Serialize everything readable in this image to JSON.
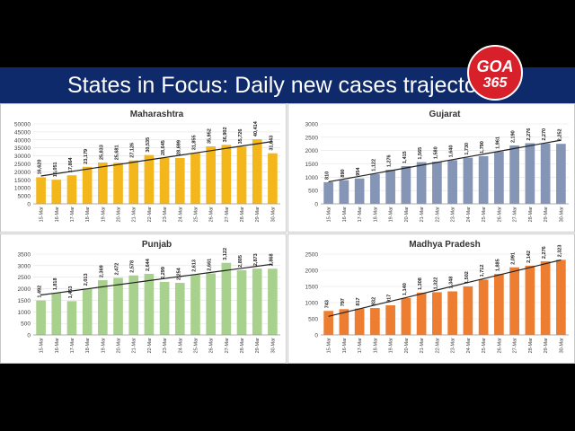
{
  "banner": {
    "title": "States in Focus: Daily new cases trajectory"
  },
  "logo": {
    "top": "GOA",
    "bottom": "365"
  },
  "chart_data": [
    {
      "type": "bar",
      "title": "Maharashtra",
      "color": "#f4b71b",
      "categories": [
        "15-Mar",
        "16-Mar",
        "17-Mar",
        "18-Mar",
        "19-Mar",
        "20-Mar",
        "21-Mar",
        "22-Mar",
        "23-Mar",
        "24-Mar",
        "25-Mar",
        "26-Mar",
        "27-Mar",
        "28-Mar",
        "29-Mar",
        "30-Mar"
      ],
      "values": [
        16620,
        15051,
        17864,
        23179,
        25833,
        25681,
        27126,
        30535,
        28645,
        28699,
        31855,
        35952,
        36902,
        35726,
        40414,
        31643
      ],
      "labels": [
        "16,620",
        "15,051",
        "17,864",
        "23,179",
        "25,833",
        "25,681",
        "27,126",
        "30,535",
        "28,645",
        "28,699",
        "31,855",
        "35,952",
        "36,902",
        "35,726",
        "40,414",
        "31,643"
      ],
      "yticks": [
        "0",
        "5000",
        "10000",
        "15000",
        "20000",
        "25000",
        "30000",
        "35000",
        "40000",
        "45000",
        "50000"
      ],
      "ylim": [
        0,
        50000
      ],
      "trendline": true
    },
    {
      "type": "bar",
      "title": "Gujarat",
      "color": "#8595b6",
      "categories": [
        "15-Mar",
        "16-Mar",
        "17-Mar",
        "18-Mar",
        "19-Mar",
        "20-Mar",
        "21-Mar",
        "22-Mar",
        "23-Mar",
        "24-Mar",
        "25-Mar",
        "26-Mar",
        "27-Mar",
        "28-Mar",
        "29-Mar",
        "30-Mar"
      ],
      "values": [
        810,
        890,
        954,
        1122,
        1276,
        1415,
        1565,
        1580,
        1640,
        1730,
        1790,
        1961,
        2190,
        2276,
        2270,
        2252
      ],
      "labels": [
        "810",
        "890",
        "954",
        "1,122",
        "1,276",
        "1,415",
        "1,565",
        "1,580",
        "1,640",
        "1,730",
        "1,790",
        "1,961",
        "2,190",
        "2,276",
        "2,270",
        "2,252"
      ],
      "yticks": [
        "0",
        "500",
        "1000",
        "1500",
        "2000",
        "2500",
        "3000"
      ],
      "ylim": [
        0,
        3000
      ],
      "trendline": true
    },
    {
      "type": "bar",
      "title": "Punjab",
      "color": "#a9d18e",
      "categories": [
        "15-Mar",
        "16-Mar",
        "17-Mar",
        "18-Mar",
        "19-Mar",
        "20-Mar",
        "21-Mar",
        "22-Mar",
        "23-Mar",
        "24-Mar",
        "25-Mar",
        "26-Mar",
        "27-Mar",
        "28-Mar",
        "29-Mar",
        "30-Mar"
      ],
      "values": [
        1492,
        1818,
        1463,
        2013,
        2369,
        2472,
        2578,
        2644,
        2299,
        2254,
        2613,
        2661,
        3122,
        2805,
        2873,
        2868
      ],
      "labels": [
        "1,492",
        "1,818",
        "1,463",
        "2,013",
        "2,369",
        "2,472",
        "2,578",
        "2,644",
        "2,299",
        "2,254",
        "2,613",
        "2,661",
        "3,122",
        "2,805",
        "2,873",
        "2,868"
      ],
      "yticks": [
        "0",
        "500",
        "1000",
        "1500",
        "2000",
        "2500",
        "3000",
        "3500"
      ],
      "ylim": [
        0,
        3500
      ],
      "trendline": true
    },
    {
      "type": "bar",
      "title": "Madhya Pradesh",
      "color": "#ed7d31",
      "categories": [
        "15-Mar",
        "16-Mar",
        "17-Mar",
        "18-Mar",
        "19-Mar",
        "20-Mar",
        "21-Mar",
        "22-Mar",
        "23-Mar",
        "24-Mar",
        "25-Mar",
        "26-Mar",
        "27-Mar",
        "28-Mar",
        "29-Mar",
        "30-Mar"
      ],
      "values": [
        743,
        797,
        817,
        832,
        917,
        1140,
        1308,
        1322,
        1348,
        1502,
        1712,
        1885,
        2091,
        2142,
        2276,
        2323
      ],
      "labels": [
        "743",
        "797",
        "817",
        "832",
        "917",
        "1,140",
        "1,308",
        "1,322",
        "1,348",
        "1,502",
        "1,712",
        "1,885",
        "2,091",
        "2,142",
        "2,276",
        "2,323"
      ],
      "yticks": [
        "0",
        "500",
        "1000",
        "1500",
        "2000",
        "2500"
      ],
      "ylim": [
        0,
        2500
      ],
      "trendline": true
    }
  ]
}
